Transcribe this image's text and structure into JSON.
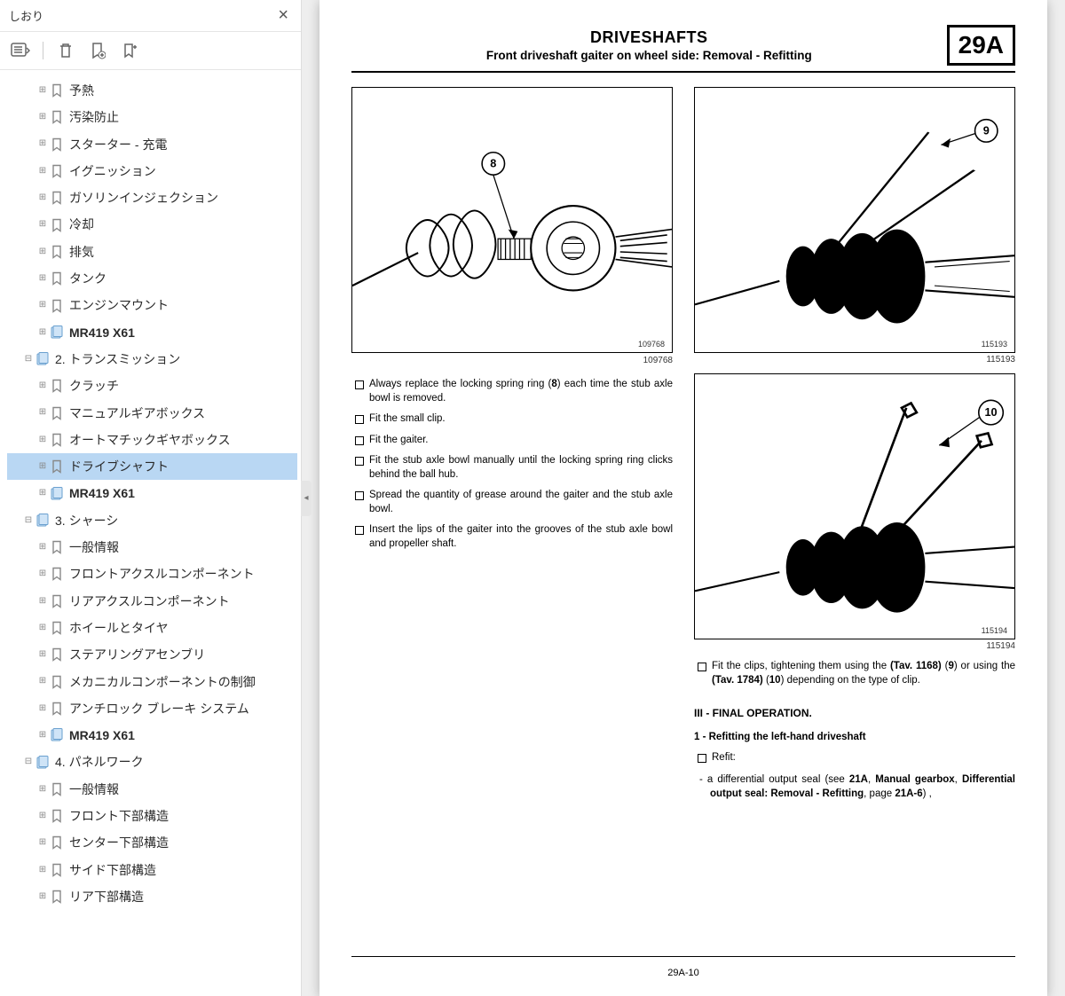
{
  "sidebar": {
    "title": "しおり",
    "tree": [
      {
        "indent": 2,
        "icon": "ribbon",
        "label": "予熱",
        "bold": false,
        "selected": false
      },
      {
        "indent": 2,
        "icon": "ribbon",
        "label": "汚染防止",
        "bold": false,
        "selected": false
      },
      {
        "indent": 2,
        "icon": "ribbon",
        "label": "スターター - 充電",
        "bold": false,
        "selected": false
      },
      {
        "indent": 2,
        "icon": "ribbon",
        "label": "イグニッション",
        "bold": false,
        "selected": false
      },
      {
        "indent": 2,
        "icon": "ribbon",
        "label": "ガソリンインジェクション",
        "bold": false,
        "selected": false
      },
      {
        "indent": 2,
        "icon": "ribbon",
        "label": "冷却",
        "bold": false,
        "selected": false
      },
      {
        "indent": 2,
        "icon": "ribbon",
        "label": "排気",
        "bold": false,
        "selected": false
      },
      {
        "indent": 2,
        "icon": "ribbon",
        "label": "タンク",
        "bold": false,
        "selected": false
      },
      {
        "indent": 2,
        "icon": "ribbon",
        "label": "エンジンマウント",
        "bold": false,
        "selected": false
      },
      {
        "indent": 2,
        "icon": "doc",
        "label": "MR419 X61",
        "bold": true,
        "selected": false
      },
      {
        "indent": 1,
        "icon": "doc",
        "label": "2. トランスミッション",
        "bold": false,
        "selected": false,
        "expand": "⊟"
      },
      {
        "indent": 2,
        "icon": "ribbon",
        "label": "クラッチ",
        "bold": false,
        "selected": false
      },
      {
        "indent": 2,
        "icon": "ribbon",
        "label": "マニュアルギアボックス",
        "bold": false,
        "selected": false
      },
      {
        "indent": 2,
        "icon": "ribbon",
        "label": "オートマチックギヤボックス",
        "bold": false,
        "selected": false
      },
      {
        "indent": 2,
        "icon": "ribbon",
        "label": "ドライブシャフト",
        "bold": false,
        "selected": true
      },
      {
        "indent": 2,
        "icon": "doc",
        "label": "MR419 X61",
        "bold": true,
        "selected": false
      },
      {
        "indent": 1,
        "icon": "doc",
        "label": "3. シャーシ",
        "bold": false,
        "selected": false,
        "expand": "⊟"
      },
      {
        "indent": 2,
        "icon": "ribbon",
        "label": "一般情報",
        "bold": false,
        "selected": false
      },
      {
        "indent": 2,
        "icon": "ribbon",
        "label": "フロントアクスルコンポーネント",
        "bold": false,
        "selected": false
      },
      {
        "indent": 2,
        "icon": "ribbon",
        "label": "リアアクスルコンポーネント",
        "bold": false,
        "selected": false
      },
      {
        "indent": 2,
        "icon": "ribbon",
        "label": "ホイールとタイヤ",
        "bold": false,
        "selected": false
      },
      {
        "indent": 2,
        "icon": "ribbon",
        "label": "ステアリングアセンブリ",
        "bold": false,
        "selected": false
      },
      {
        "indent": 2,
        "icon": "ribbon",
        "label": "メカニカルコンポーネントの制御",
        "bold": false,
        "selected": false
      },
      {
        "indent": 2,
        "icon": "ribbon",
        "label": "アンチロック ブレーキ システム",
        "bold": false,
        "selected": false
      },
      {
        "indent": 2,
        "icon": "doc",
        "label": "MR419 X61",
        "bold": true,
        "selected": false
      },
      {
        "indent": 1,
        "icon": "doc",
        "label": "4. パネルワーク",
        "bold": false,
        "selected": false,
        "expand": "⊟"
      },
      {
        "indent": 2,
        "icon": "ribbon",
        "label": "一般情報",
        "bold": false,
        "selected": false
      },
      {
        "indent": 2,
        "icon": "ribbon",
        "label": "フロント下部構造",
        "bold": false,
        "selected": false
      },
      {
        "indent": 2,
        "icon": "ribbon",
        "label": "センター下部構造",
        "bold": false,
        "selected": false
      },
      {
        "indent": 2,
        "icon": "ribbon",
        "label": "サイド下部構造",
        "bold": false,
        "selected": false
      },
      {
        "indent": 2,
        "icon": "ribbon",
        "label": "リア下部構造",
        "bold": false,
        "selected": false
      }
    ]
  },
  "page": {
    "title_main": "DRIVESHAFTS",
    "title_sub": "Front driveshaft gaiter on wheel side: Removal - Refitting",
    "code": "29A",
    "fig_left_id_inside": "109768",
    "fig_left_id": "109768",
    "fig_left_callout": "8",
    "fig_r1_id_inside": "115193",
    "fig_r1_id": "115193",
    "fig_r1_callout": "9",
    "fig_r2_id_inside": "115194",
    "fig_r2_id": "115194",
    "fig_r2_callout": "10",
    "bullets_left": [
      "Always replace the locking spring ring (8) each time the stub axle bowl is removed.",
      "Fit the small clip.",
      "Fit the gaiter.",
      "Fit the stub axle bowl manually until the locking spring ring clicks behind the ball hub.",
      "Spread the quantity of grease around the gaiter and the stub axle bowl.",
      "Insert the lips of the gaiter into the grooves of the stub axle bowl and propeller shaft."
    ],
    "right_note_html": "Fit the clips, tightening them using the <b>(Tav. 1168)</b> (<b>9</b>) or using the <b>(Tav. 1784)</b>  (<b>10</b>) depending on the type of clip.",
    "section_title": "III - FINAL OPERATION.",
    "sub_title": "1 - Refitting the left-hand driveshaft",
    "refit_label": "Refit:",
    "refit_item_html": "a differential output seal (see <b>21A</b>, <b>Manual gearbox</b>, <b>Differential output seal: Removal - Refitting</b>, page <b>21A-6</b>) ,",
    "page_number": "29A-10"
  }
}
